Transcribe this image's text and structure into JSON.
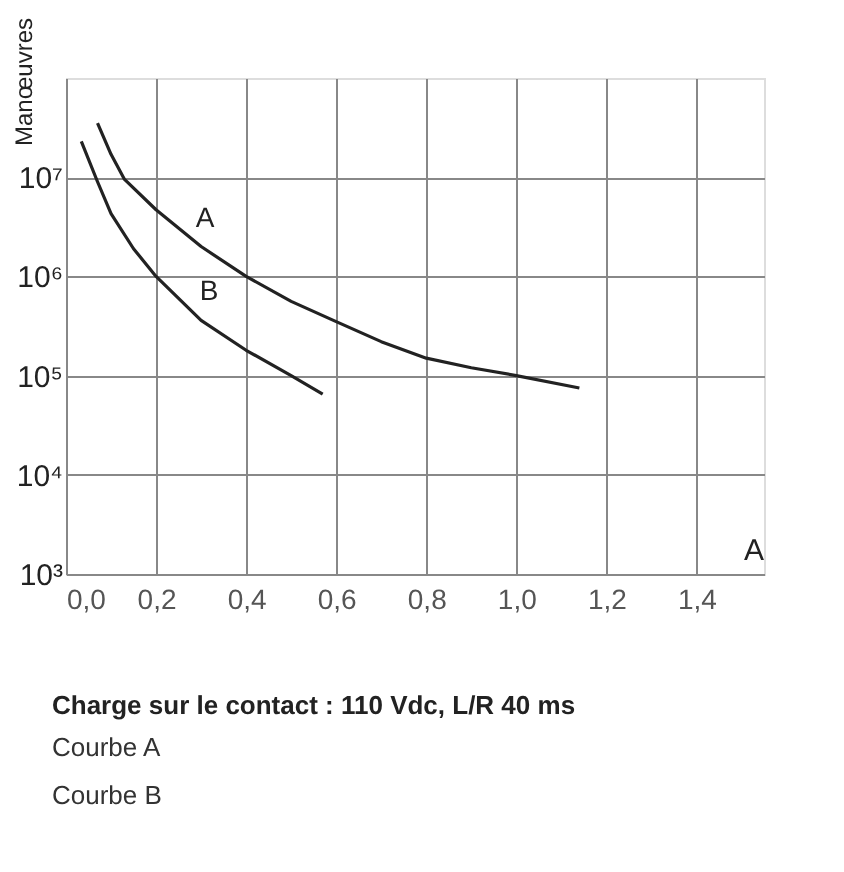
{
  "chart_data": {
    "type": "line",
    "xlabel": "A",
    "ylabel": "Manœuvres",
    "log": "y",
    "grid": true,
    "marker": "none",
    "line_style": "solid",
    "xlim": [
      0,
      1.55
    ],
    "ylim": [
      1000,
      100000000
    ],
    "xticks": [
      {
        "value": 0,
        "label": "0,0"
      },
      {
        "value": 0.2,
        "label": "0,2"
      },
      {
        "value": 0.4,
        "label": "0,4"
      },
      {
        "value": 0.6,
        "label": "0,6"
      },
      {
        "value": 0.8,
        "label": "0,8"
      },
      {
        "value": 1.0,
        "label": "1,0"
      },
      {
        "value": 1.2,
        "label": "1,2"
      },
      {
        "value": 1.4,
        "label": "1,4"
      }
    ],
    "yticks": [
      {
        "value": 1000,
        "label": "10³"
      },
      {
        "value": 10000,
        "label": "10⁴"
      },
      {
        "value": 100000,
        "label": "10⁵"
      },
      {
        "value": 1000000,
        "label": "10⁶"
      },
      {
        "value": 10000000,
        "label": "10⁷"
      }
    ],
    "series": [
      {
        "name": "A",
        "color": "#222222",
        "x": [
          0.07,
          0.1,
          0.13,
          0.2,
          0.3,
          0.4,
          0.5,
          0.6,
          0.7,
          0.8,
          0.9,
          1.0,
          1.14
        ],
        "values": [
          35000000,
          17000000,
          9500000,
          4700000,
          2000000,
          1000000,
          560000,
          350000,
          220000,
          150000,
          120000,
          100000,
          75000
        ]
      },
      {
        "name": "B",
        "color": "#222222",
        "x": [
          0.034,
          0.07,
          0.1,
          0.15,
          0.2,
          0.3,
          0.4,
          0.5,
          0.57
        ],
        "values": [
          23000000,
          9000000,
          4300000,
          1900000,
          1000000,
          360000,
          180000,
          100000,
          65000
        ]
      }
    ],
    "annotations": [
      "Charge sur le contact : 110 Vdc, L/R 40 ms",
      "Courbe A",
      "Courbe B"
    ]
  }
}
